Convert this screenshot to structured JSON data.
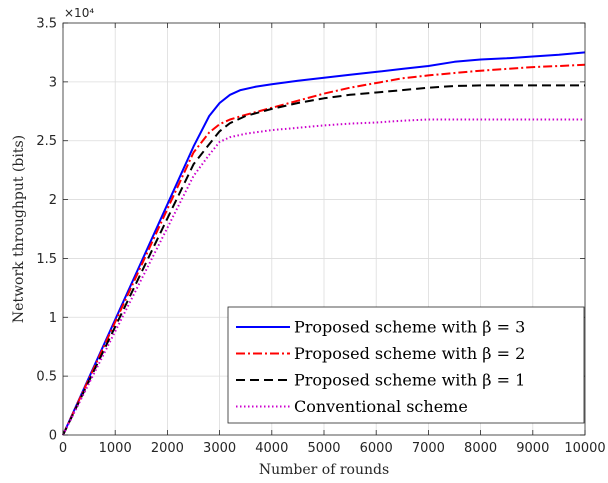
{
  "chart_data": {
    "type": "line",
    "title": "",
    "xlabel": "Number of rounds",
    "ylabel": "Network throughput (bits)",
    "xlim": [
      0,
      10000
    ],
    "ylim": [
      0,
      35000
    ],
    "y_scale_label": "×10⁴",
    "x_ticks": [
      0,
      1000,
      2000,
      3000,
      4000,
      5000,
      6000,
      7000,
      8000,
      9000,
      10000
    ],
    "x_tick_labels": [
      "0",
      "1000",
      "2000",
      "3000",
      "4000",
      "5000",
      "6000",
      "7000",
      "8000",
      "9000",
      "10000"
    ],
    "y_ticks": [
      0,
      5000,
      10000,
      15000,
      20000,
      25000,
      30000,
      35000
    ],
    "y_tick_labels": [
      "0",
      "0.5",
      "1",
      "1.5",
      "2",
      "2.5",
      "3",
      "3.5"
    ],
    "grid": true,
    "legend_position": "bottom-right",
    "series": [
      {
        "name": "Proposed scheme with β = 3",
        "color": "#0000ff",
        "dash": "solid",
        "x": [
          0,
          500,
          1000,
          1500,
          2000,
          2500,
          2800,
          3000,
          3200,
          3400,
          3700,
          4000,
          4500,
          5000,
          5500,
          6000,
          6500,
          7000,
          7500,
          8000,
          8500,
          9000,
          9500,
          10000
        ],
        "y": [
          0,
          4900,
          9800,
          14700,
          19600,
          24500,
          27100,
          28200,
          28900,
          29300,
          29600,
          29800,
          30100,
          30350,
          30600,
          30850,
          31100,
          31350,
          31700,
          31900,
          32000,
          32150,
          32300,
          32500
        ]
      },
      {
        "name": "Proposed scheme with β = 2",
        "color": "#ff0000",
        "dash": "dashdot",
        "x": [
          0,
          500,
          1000,
          1500,
          2000,
          2500,
          2800,
          3000,
          3200,
          3500,
          4000,
          4500,
          5000,
          5500,
          6000,
          6500,
          7000,
          7500,
          8000,
          8500,
          9000,
          9500,
          10000
        ],
        "y": [
          0,
          4800,
          9600,
          14400,
          19200,
          24000,
          25700,
          26400,
          26800,
          27200,
          27800,
          28400,
          29000,
          29500,
          29900,
          30300,
          30550,
          30750,
          30950,
          31100,
          31250,
          31350,
          31450
        ]
      },
      {
        "name": "Proposed scheme with β = 1",
        "color": "#000000",
        "dash": "dashed",
        "x": [
          0,
          500,
          1000,
          1500,
          2000,
          2500,
          2800,
          3000,
          3200,
          3500,
          4000,
          4500,
          5000,
          5500,
          6000,
          6500,
          7000,
          7500,
          8000,
          8500,
          9000,
          9500,
          10000
        ],
        "y": [
          0,
          4600,
          9200,
          13800,
          18400,
          23000,
          24700,
          25800,
          26500,
          27100,
          27700,
          28200,
          28600,
          28900,
          29100,
          29300,
          29500,
          29650,
          29700,
          29700,
          29700,
          29700,
          29700
        ]
      },
      {
        "name": "Conventional scheme",
        "color": "#cc00cc",
        "dash": "dotted",
        "x": [
          0,
          500,
          1000,
          1500,
          2000,
          2500,
          2800,
          3000,
          3200,
          3500,
          4000,
          4500,
          5000,
          5500,
          6000,
          6500,
          7000,
          7500,
          8000,
          8500,
          9000,
          9500,
          10000
        ],
        "y": [
          0,
          4400,
          8800,
          13200,
          17600,
          22000,
          23800,
          24900,
          25300,
          25600,
          25900,
          26100,
          26300,
          26450,
          26550,
          26700,
          26800,
          26800,
          26800,
          26800,
          26800,
          26800,
          26800
        ]
      }
    ]
  }
}
